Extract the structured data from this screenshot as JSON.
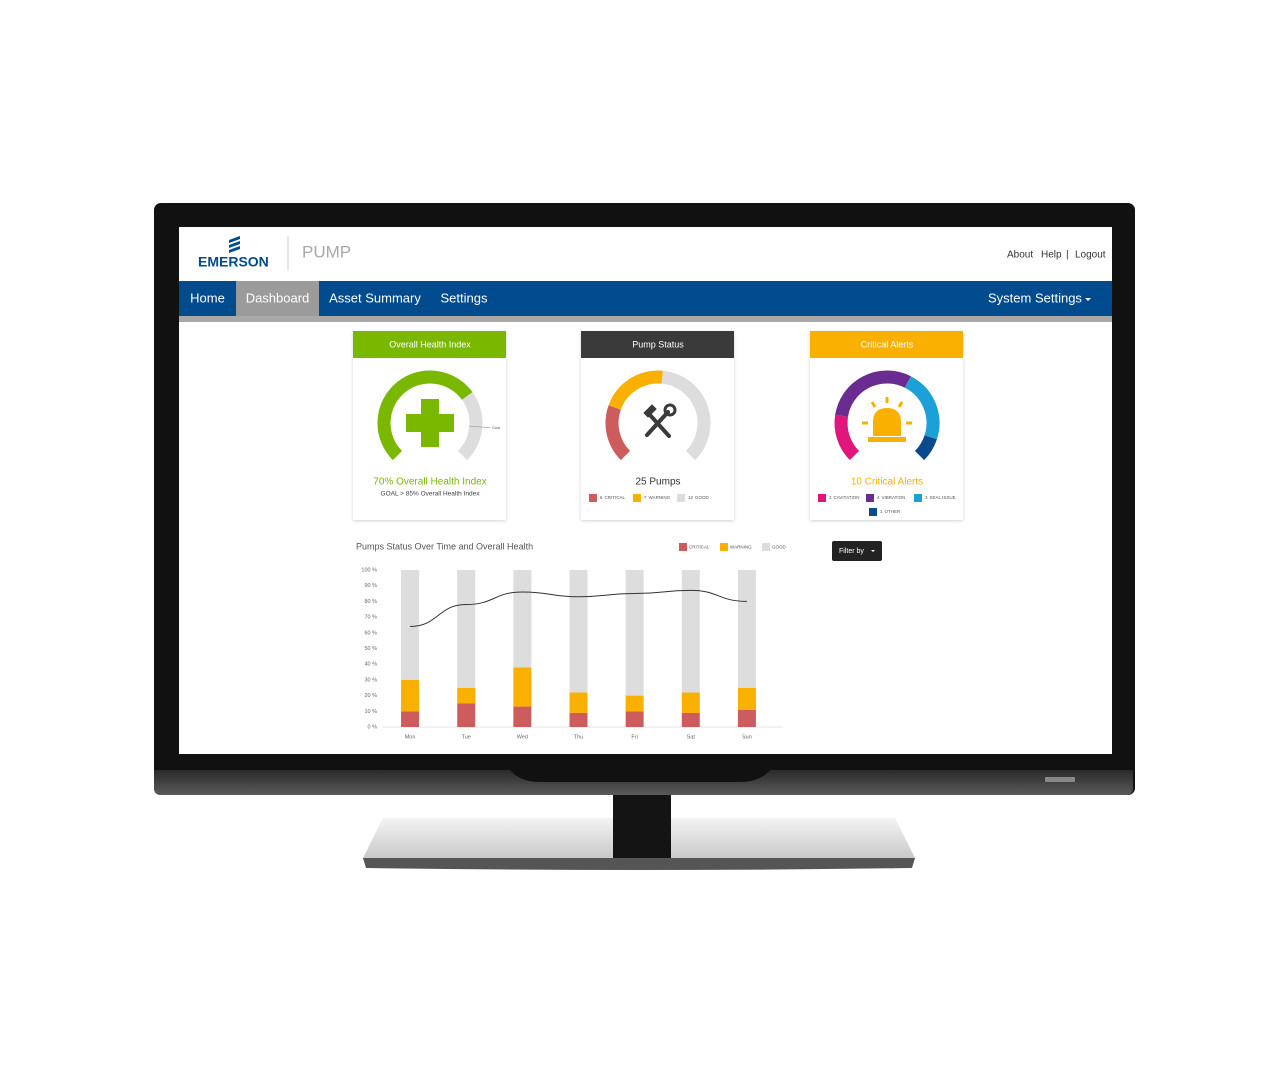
{
  "header": {
    "logo": "EMERSON",
    "app": "PUMP",
    "links": [
      "About",
      "Help",
      "Logout"
    ],
    "separator": "|"
  },
  "nav": {
    "items": [
      "Home",
      "Dashboard",
      "Asset Summary",
      "Settings"
    ],
    "active": 1,
    "right": "System Settings"
  },
  "cards": [
    {
      "title": "Overall Health Index",
      "color": "#7ab800",
      "range": [
        0,
        100
      ],
      "value": 70,
      "goal": 85,
      "goal_label": "Goal",
      "text": "70% Overall Health Index",
      "subtext": "GOAL > 85% Overall Health Index"
    },
    {
      "title": "Pump Status",
      "color": "#3a3a3a",
      "text": "25 Pumps",
      "segments": [
        {
          "count": 6,
          "label": "CRITICAL",
          "color": "#cd5c5c"
        },
        {
          "count": 7,
          "label": "WARNING",
          "color": "#f9b000"
        },
        {
          "count": 12,
          "label": "GOOD",
          "color": "#dddddd"
        }
      ]
    },
    {
      "title": "Critical Alerts",
      "color": "#f9b000",
      "text": "10 Critical Alerts",
      "segments": [
        {
          "count": 2,
          "label": "CAVITATION",
          "color": "#e0167d"
        },
        {
          "count": 4,
          "label": "VIBRATION",
          "color": "#6b2c91"
        },
        {
          "count": 3,
          "label": "SEAL ISSUE",
          "color": "#1ba0d7"
        },
        {
          "count": 1,
          "label": "OTHER",
          "color": "#0a4a8c"
        }
      ]
    }
  ],
  "filter": "Filter by",
  "chart_data": {
    "type": "stacked-bar-line",
    "title": "Pumps Status Over Time and Overall Health",
    "categories": [
      "Mon",
      "Tue",
      "Wed",
      "Thu",
      "Fri",
      "Sat",
      "Sun"
    ],
    "series": [
      {
        "name": "CRITICAL",
        "color": "#cd5c5c",
        "values": [
          10,
          15,
          13,
          9,
          10,
          9,
          11
        ]
      },
      {
        "name": "WARNING",
        "color": "#f9b000",
        "values": [
          20,
          10,
          25,
          13,
          10,
          13,
          14
        ]
      },
      {
        "name": "GOOD",
        "color": "#dddddd",
        "values": [
          70,
          75,
          62,
          78,
          80,
          78,
          75
        ]
      }
    ],
    "line": {
      "color": "#333333",
      "values": [
        64,
        78,
        86,
        83,
        85,
        87,
        80
      ]
    },
    "ylim": [
      0,
      100
    ],
    "yticks": [
      {
        "value": 0,
        "label": "0 %"
      },
      {
        "value": 10,
        "label": "10 %"
      },
      {
        "value": 20,
        "label": "20 %"
      },
      {
        "value": 30,
        "label": "30 %"
      },
      {
        "value": 40,
        "label": "40 %"
      },
      {
        "value": 50,
        "label": "50 %"
      },
      {
        "value": 60,
        "label": "60 %"
      },
      {
        "value": 70,
        "label": "70 %"
      },
      {
        "value": 80,
        "label": "80 %"
      },
      {
        "value": 90,
        "label": "90 %"
      },
      {
        "value": 100,
        "label": "100 %"
      }
    ],
    "grid": false
  }
}
